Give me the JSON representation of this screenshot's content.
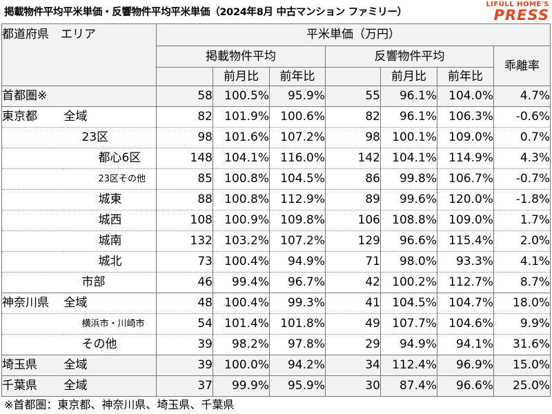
{
  "title": "掲載物件平均平米単価・反響物件平均平米単価（2024年8月 中古マンション ファミリー）",
  "logo": {
    "line1": "LIFULL HOME'S",
    "line2": "PRESS",
    "color": "#E8461E"
  },
  "header": {
    "area": "都道府県　エリア",
    "unit_price": "平米単価（万円）",
    "listing_avg": "掲載物件平均",
    "response_avg": "反響物件平均",
    "gap": "乖離率",
    "mom": "前月比",
    "yoy": "前年比"
  },
  "rows": [
    {
      "region": "首都圏※",
      "sub": "",
      "level": 0,
      "l_price": "58",
      "l_mom": "100.5%",
      "l_yoy": "95.9%",
      "r_price": "55",
      "r_mom": "96.1%",
      "r_yoy": "104.0%",
      "gap": "4.7%"
    },
    {
      "region": "東京都",
      "sub": "全域",
      "level": 1,
      "l_price": "82",
      "l_mom": "101.9%",
      "l_yoy": "100.6%",
      "r_price": "82",
      "r_mom": "96.1%",
      "r_yoy": "106.3%",
      "gap": "-0.6%"
    },
    {
      "region": "",
      "sub": "23区",
      "level": 2,
      "l_price": "98",
      "l_mom": "101.6%",
      "l_yoy": "107.2%",
      "r_price": "98",
      "r_mom": "100.1%",
      "r_yoy": "109.0%",
      "gap": "0.7%"
    },
    {
      "region": "",
      "sub": "都心6区",
      "level": 3,
      "l_price": "148",
      "l_mom": "104.1%",
      "l_yoy": "116.0%",
      "r_price": "142",
      "r_mom": "104.1%",
      "r_yoy": "114.9%",
      "gap": "4.3%"
    },
    {
      "region": "",
      "sub": "23区その他",
      "level": 3,
      "small": true,
      "l_price": "85",
      "l_mom": "100.8%",
      "l_yoy": "104.5%",
      "r_price": "86",
      "r_mom": "99.8%",
      "r_yoy": "106.7%",
      "gap": "-0.7%"
    },
    {
      "region": "",
      "sub": "城東",
      "level": 3,
      "l_price": "88",
      "l_mom": "100.8%",
      "l_yoy": "112.9%",
      "r_price": "89",
      "r_mom": "99.6%",
      "r_yoy": "120.0%",
      "gap": "-1.8%"
    },
    {
      "region": "",
      "sub": "城西",
      "level": 3,
      "l_price": "108",
      "l_mom": "100.9%",
      "l_yoy": "109.8%",
      "r_price": "106",
      "r_mom": "108.8%",
      "r_yoy": "109.0%",
      "gap": "1.7%"
    },
    {
      "region": "",
      "sub": "城南",
      "level": 3,
      "l_price": "132",
      "l_mom": "103.2%",
      "l_yoy": "107.2%",
      "r_price": "129",
      "r_mom": "96.6%",
      "r_yoy": "115.4%",
      "gap": "2.0%"
    },
    {
      "region": "",
      "sub": "城北",
      "level": 3,
      "l_price": "73",
      "l_mom": "100.4%",
      "l_yoy": "94.9%",
      "r_price": "71",
      "r_mom": "98.0%",
      "r_yoy": "93.3%",
      "gap": "4.1%"
    },
    {
      "region": "",
      "sub": "市部",
      "level": 2,
      "l_price": "46",
      "l_mom": "99.4%",
      "l_yoy": "96.7%",
      "r_price": "42",
      "r_mom": "100.2%",
      "r_yoy": "112.7%",
      "gap": "8.7%"
    },
    {
      "region": "神奈川県",
      "sub": "全域",
      "level": 1,
      "l_price": "48",
      "l_mom": "100.4%",
      "l_yoy": "99.3%",
      "r_price": "41",
      "r_mom": "104.5%",
      "r_yoy": "104.7%",
      "gap": "18.0%"
    },
    {
      "region": "",
      "sub": "横浜市・川崎市",
      "level": 2,
      "small": true,
      "l_price": "54",
      "l_mom": "101.4%",
      "l_yoy": "101.8%",
      "r_price": "49",
      "r_mom": "107.7%",
      "r_yoy": "104.6%",
      "gap": "9.9%"
    },
    {
      "region": "",
      "sub": "その他",
      "level": 2,
      "l_price": "39",
      "l_mom": "98.2%",
      "l_yoy": "97.8%",
      "r_price": "29",
      "r_mom": "94.9%",
      "r_yoy": "94.1%",
      "gap": "31.6%"
    },
    {
      "region": "埼玉県",
      "sub": "全域",
      "level": 1,
      "l_price": "39",
      "l_mom": "100.0%",
      "l_yoy": "94.2%",
      "r_price": "34",
      "r_mom": "112.4%",
      "r_yoy": "96.9%",
      "gap": "15.0%"
    },
    {
      "region": "千葉県",
      "sub": "全域",
      "level": 1,
      "l_price": "37",
      "l_mom": "99.9%",
      "l_yoy": "95.9%",
      "r_price": "30",
      "r_mom": "87.4%",
      "r_yoy": "96.6%",
      "gap": "25.0%"
    }
  ],
  "footnote": "※首都圏：東京都、神奈川県、埼玉県、千葉県"
}
